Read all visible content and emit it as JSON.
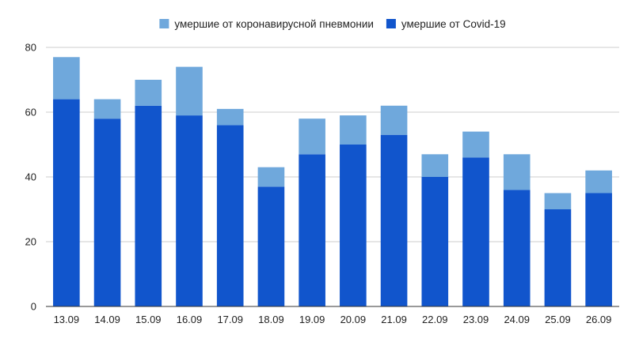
{
  "chart_data": {
    "type": "bar",
    "stacked": true,
    "categories": [
      "13.09",
      "14.09",
      "15.09",
      "16.09",
      "17.09",
      "18.09",
      "19.09",
      "20.09",
      "21.09",
      "22.09",
      "23.09",
      "24.09",
      "25.09",
      "26.09"
    ],
    "series": [
      {
        "name": "умершие от Covid-19",
        "color": "#1155cc",
        "values": [
          64,
          58,
          62,
          59,
          56,
          37,
          47,
          50,
          53,
          40,
          46,
          36,
          30,
          35
        ]
      },
      {
        "name": "умершие от коронавирусной пневмонии",
        "color": "#6fa8dc",
        "values": [
          13,
          6,
          8,
          15,
          5,
          6,
          11,
          9,
          9,
          7,
          8,
          11,
          5,
          7
        ]
      }
    ],
    "legend_order": [
      1,
      0
    ],
    "legend_position": "top",
    "ylim": [
      0,
      80
    ],
    "yticks": [
      0,
      20,
      40,
      60,
      80
    ],
    "grid": true,
    "title": "",
    "xlabel": "",
    "ylabel": ""
  }
}
